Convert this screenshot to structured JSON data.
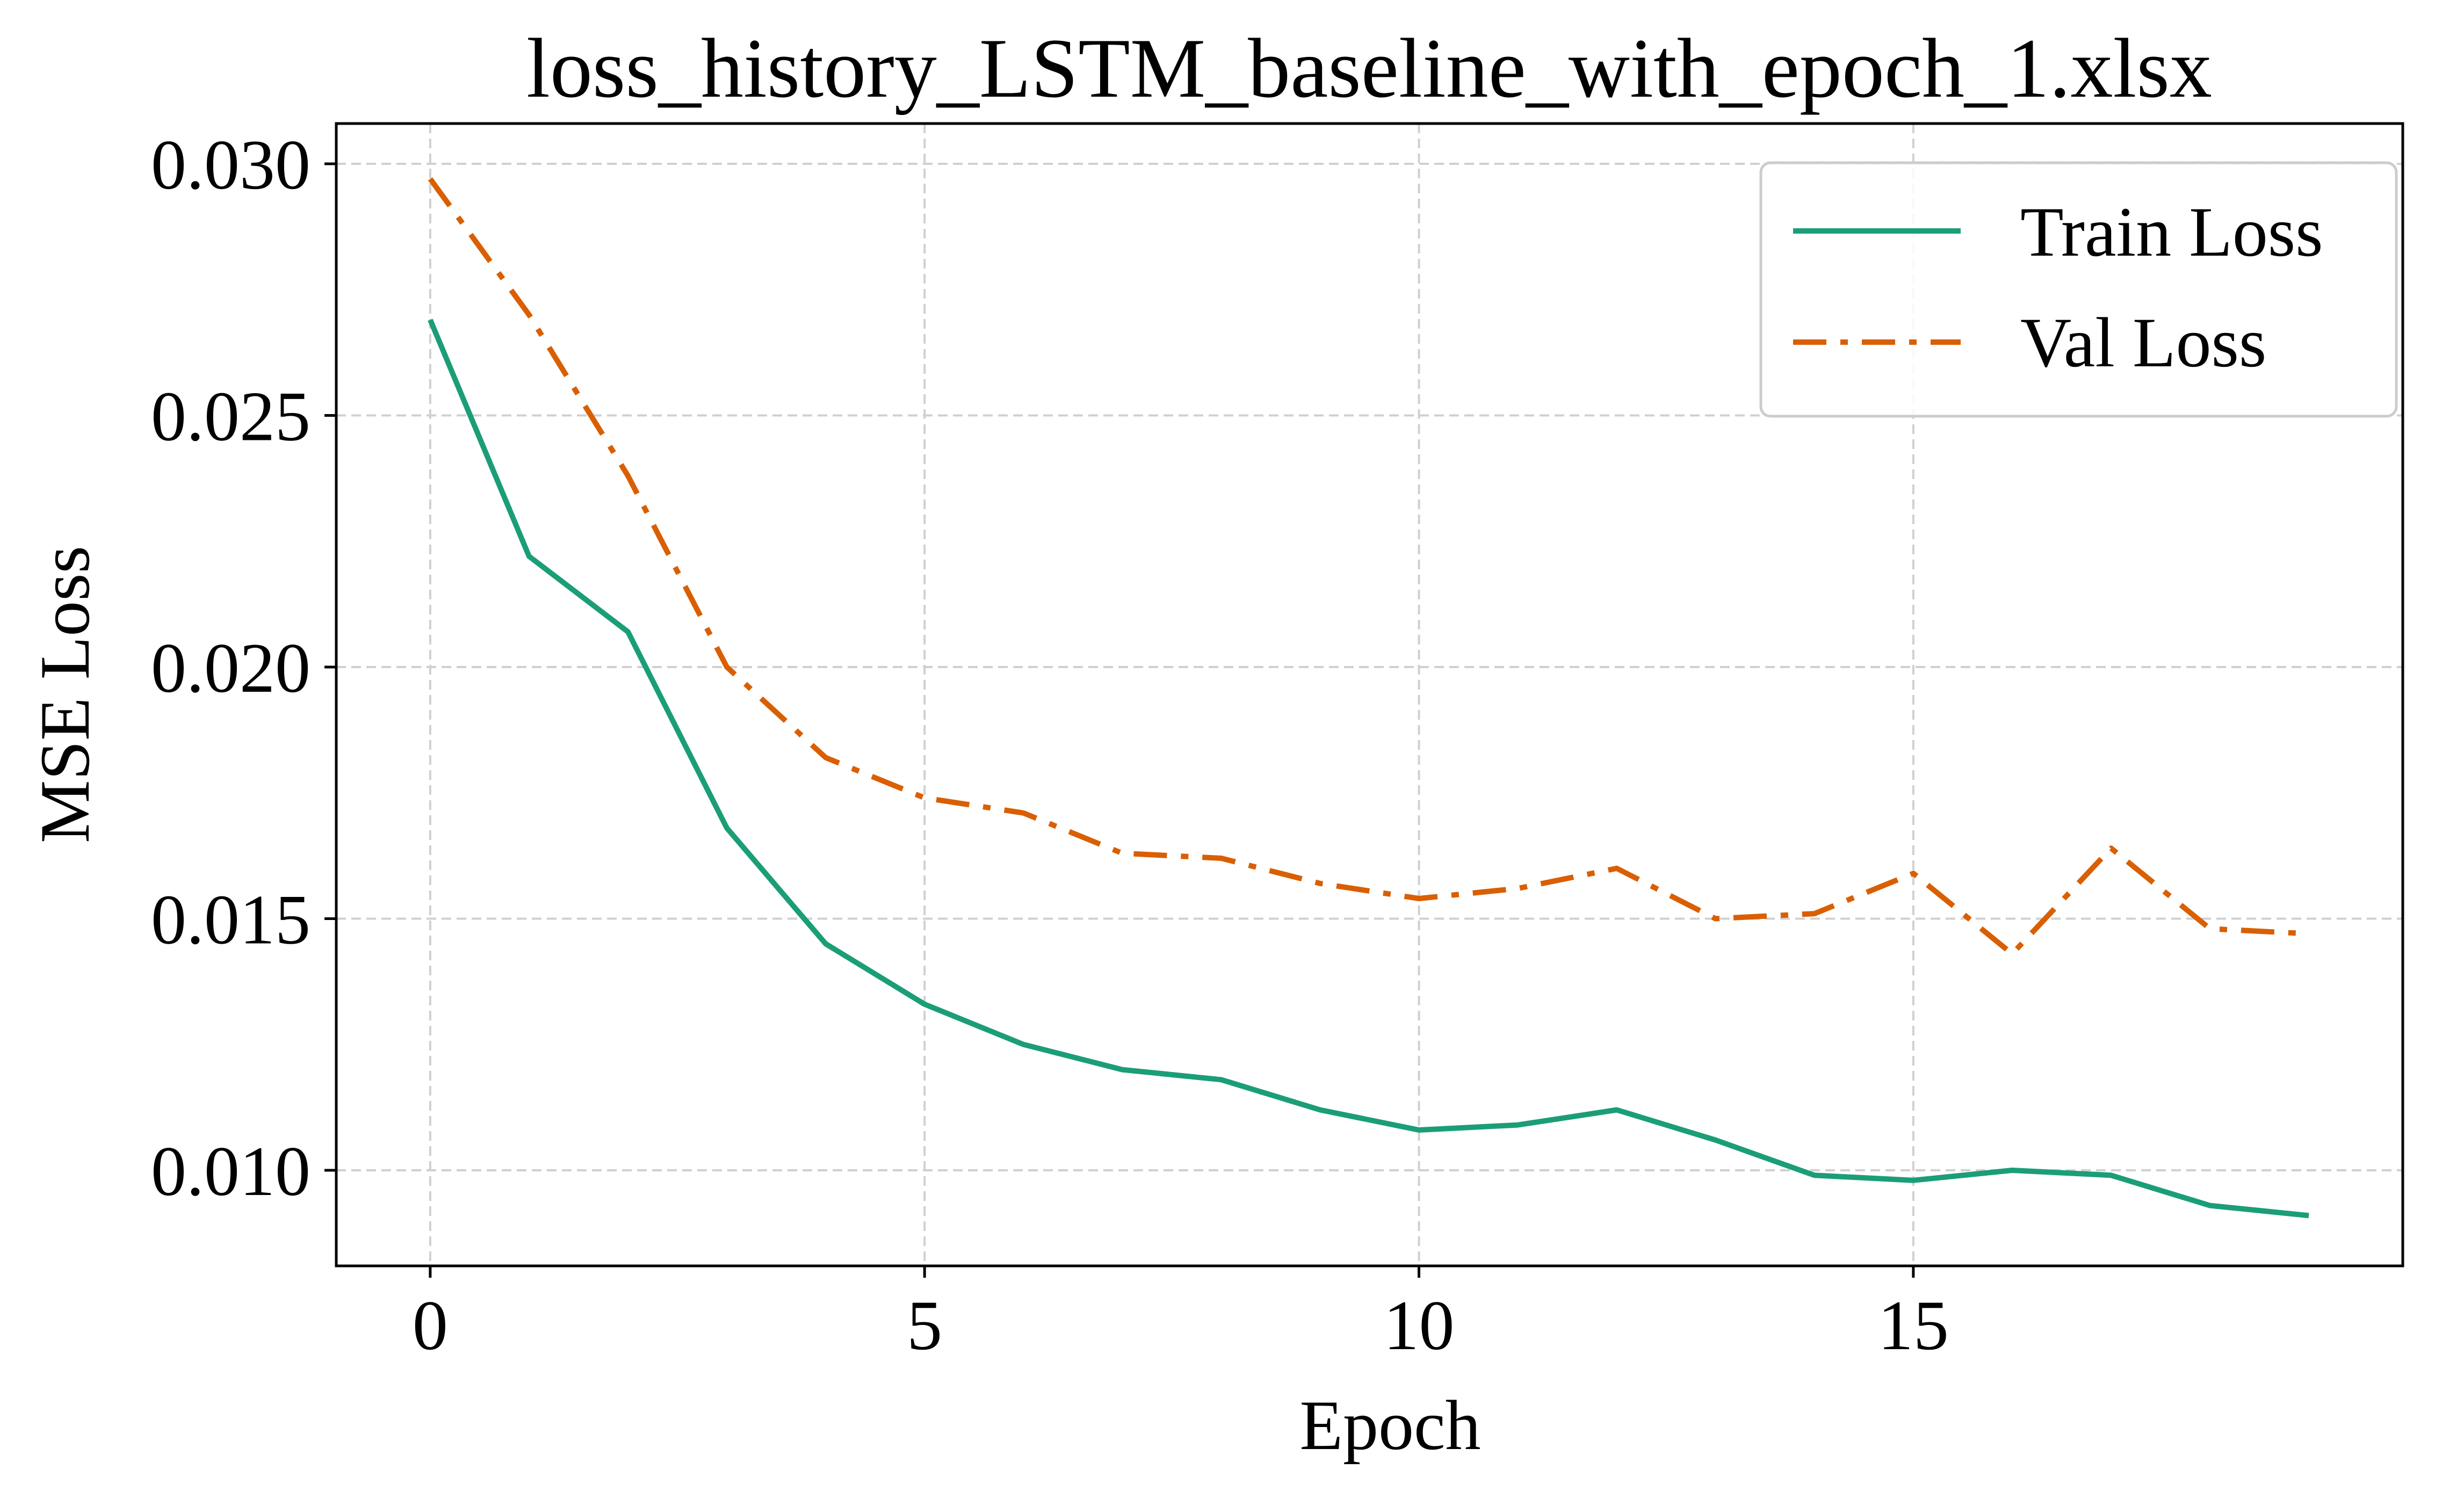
{
  "chart_data": {
    "type": "line",
    "title": "loss_history_LSTM_baseline_with_epoch_1.xlsx",
    "xlabel": "Epoch",
    "ylabel": "MSE Loss",
    "x": [
      0,
      1,
      2,
      3,
      4,
      5,
      6,
      7,
      8,
      9,
      10,
      11,
      12,
      13,
      14,
      15,
      16,
      17,
      18,
      19
    ],
    "xlim": [
      -0.95,
      19.95
    ],
    "ylim": [
      0.0081,
      0.0308
    ],
    "xticks": [
      0,
      5,
      10,
      15
    ],
    "xtick_labels": [
      "0",
      "5",
      "10",
      "15"
    ],
    "yticks": [
      0.01,
      0.015,
      0.02,
      0.025,
      0.03
    ],
    "ytick_labels": [
      "0.010",
      "0.015",
      "0.020",
      "0.025",
      "0.030"
    ],
    "grid": true,
    "legend_position": "top-right",
    "series": [
      {
        "name": "Train Loss",
        "color": "#1b9e77",
        "style": "solid",
        "values": [
          0.0269,
          0.0222,
          0.0207,
          0.0168,
          0.0145,
          0.0133,
          0.0125,
          0.012,
          0.0118,
          0.0112,
          0.0108,
          0.0109,
          0.0112,
          0.0106,
          0.0099,
          0.0098,
          0.01,
          0.0099,
          0.0093,
          0.0091
        ]
      },
      {
        "name": "Val Loss",
        "color": "#d95f02",
        "style": "dashdot",
        "values": [
          0.0297,
          0.027,
          0.0238,
          0.02,
          0.0182,
          0.0174,
          0.0171,
          0.0163,
          0.0162,
          0.0157,
          0.0154,
          0.0156,
          0.016,
          0.015,
          0.0151,
          0.0159,
          0.0143,
          0.0164,
          0.0148,
          0.0147
        ]
      }
    ]
  }
}
